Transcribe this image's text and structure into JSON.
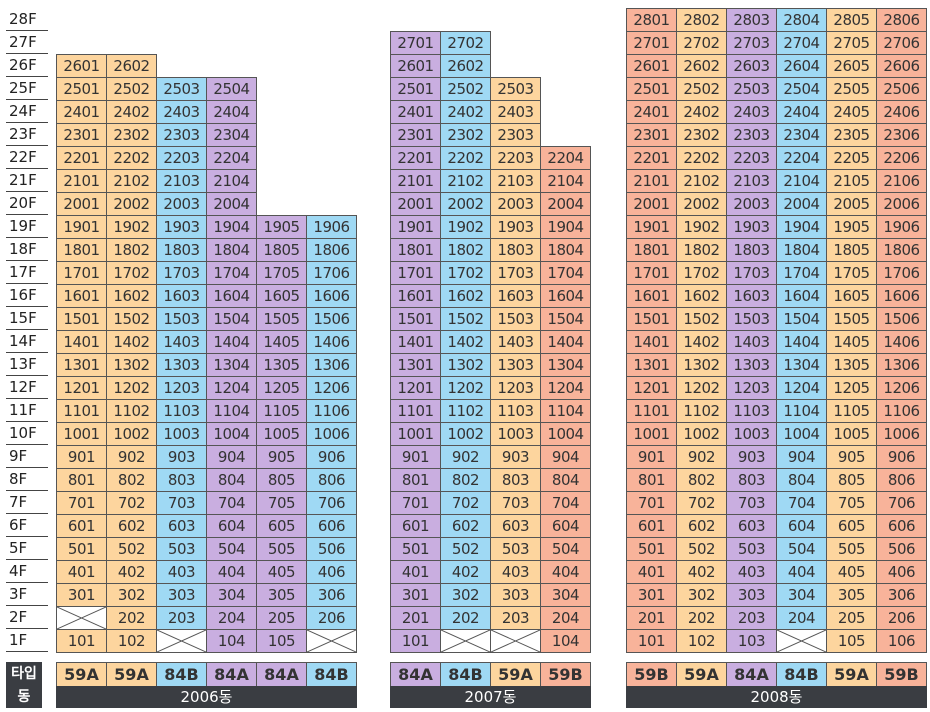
{
  "colors": {
    "59A": "#fdd59e",
    "84B": "#9fd9f4",
    "84A": "#c9aee0",
    "59B": "#f8b39a"
  },
  "floors": [
    "28F",
    "27F",
    "26F",
    "25F",
    "24F",
    "23F",
    "22F",
    "21F",
    "20F",
    "19F",
    "18F",
    "17F",
    "16F",
    "15F",
    "14F",
    "13F",
    "12F",
    "11F",
    "10F",
    "9F",
    "8F",
    "7F",
    "6F",
    "5F",
    "4F",
    "3F",
    "2F",
    "1F"
  ],
  "side_labels": {
    "type": "타입",
    "dong": "동"
  },
  "buildings": [
    {
      "name": "2006동",
      "types": [
        "59A",
        "59A",
        "84B",
        "84A",
        "84A",
        "84B"
      ],
      "columns": [
        {
          "top": 26,
          "missing": [
            2
          ]
        },
        {
          "top": 26,
          "missing": []
        },
        {
          "top": 25,
          "missing": [
            1
          ]
        },
        {
          "top": 25,
          "missing": []
        },
        {
          "top": 19,
          "missing": []
        },
        {
          "top": 19,
          "missing": [
            1
          ]
        }
      ]
    },
    {
      "name": "2007동",
      "types": [
        "84A",
        "84B",
        "59A",
        "59B"
      ],
      "columns": [
        {
          "top": 27,
          "missing": []
        },
        {
          "top": 27,
          "missing": [
            1
          ]
        },
        {
          "top": 25,
          "missing": [
            1
          ]
        },
        {
          "top": 22,
          "missing": []
        }
      ]
    },
    {
      "name": "2008동",
      "types": [
        "59B",
        "59A",
        "84A",
        "84B",
        "59A",
        "59B"
      ],
      "columns": [
        {
          "top": 28,
          "missing": []
        },
        {
          "top": 28,
          "missing": []
        },
        {
          "top": 28,
          "missing": []
        },
        {
          "top": 28,
          "missing": [
            1
          ]
        },
        {
          "top": 28,
          "missing": []
        },
        {
          "top": 28,
          "missing": []
        }
      ]
    }
  ]
}
